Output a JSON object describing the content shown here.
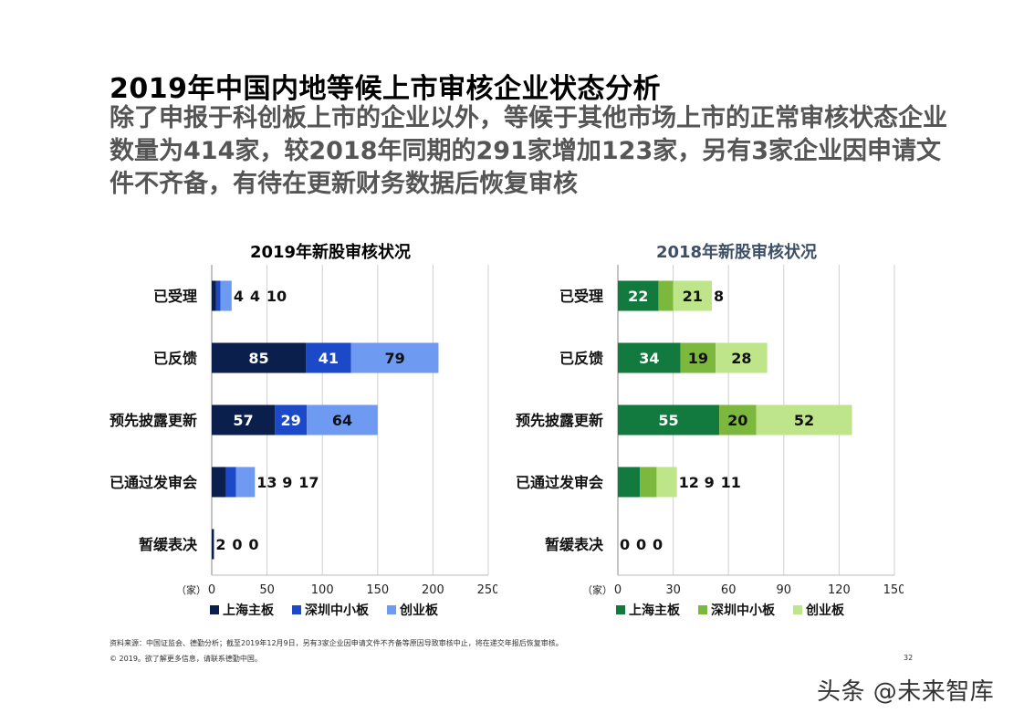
{
  "page": {
    "title": "2019年中国内地等候上市审核企业状态分析",
    "subtitle": "除了申报于科创板上市的企业以外，等候于其他市场上市的正常审核状态企业数量为414家，较2018年同期的291家增加123家，另有3家企业因申请文件不齐备，有待在更新财务数据后恢复审核",
    "footnote": "资料来源：中国证监会、德勤分析；截至2019年12月9日，另有3家企业因申请文件不齐备等原因导致审核中止，将在递交年报后恢复审核。",
    "copyright": "© 2019。欲了解更多信息，请联系德勤中国。",
    "page_number": "32",
    "watermark": "头条 @未来智库"
  },
  "chart_data": [
    {
      "type": "bar",
      "orientation": "horizontal",
      "stacked": true,
      "title": "2019年新股审核状况",
      "title_color": "#000000",
      "categories": [
        "已受理",
        "已反馈",
        "预先披露更新",
        "已通过发审会",
        "暂缓表决"
      ],
      "series": [
        {
          "name": "上海主板",
          "color": "#0b1f4d",
          "values": [
            4,
            85,
            57,
            13,
            2
          ]
        },
        {
          "name": "深圳中小板",
          "color": "#1b49c8",
          "values": [
            4,
            41,
            29,
            9,
            0
          ]
        },
        {
          "name": "创业板",
          "color": "#6f9af1",
          "values": [
            10,
            79,
            64,
            17,
            0
          ]
        }
      ],
      "xlim": [
        0,
        250
      ],
      "xticks": [
        0,
        50,
        100,
        150,
        200,
        250
      ],
      "unit_label": "（家）",
      "grid": true,
      "legend": "bottom"
    },
    {
      "type": "bar",
      "orientation": "horizontal",
      "stacked": true,
      "title": "2018年新股审核状况",
      "title_color": "#3d4f66",
      "categories": [
        "已受理",
        "已反馈",
        "预先披露更新",
        "已通过发审会",
        "暂缓表决"
      ],
      "series": [
        {
          "name": "上海主板",
          "color": "#137a3f",
          "values": [
            22,
            34,
            55,
            12,
            0
          ]
        },
        {
          "name": "深圳中小板",
          "color": "#7db83e",
          "values": [
            8,
            19,
            20,
            9,
            0
          ]
        },
        {
          "name": "创业板",
          "color": "#bfe58a",
          "values": [
            21,
            28,
            52,
            11,
            0
          ]
        }
      ],
      "xlim": [
        0,
        150
      ],
      "xticks": [
        0,
        30,
        60,
        90,
        120,
        150
      ],
      "unit_label": "（家）",
      "grid": true,
      "legend": "bottom"
    }
  ]
}
